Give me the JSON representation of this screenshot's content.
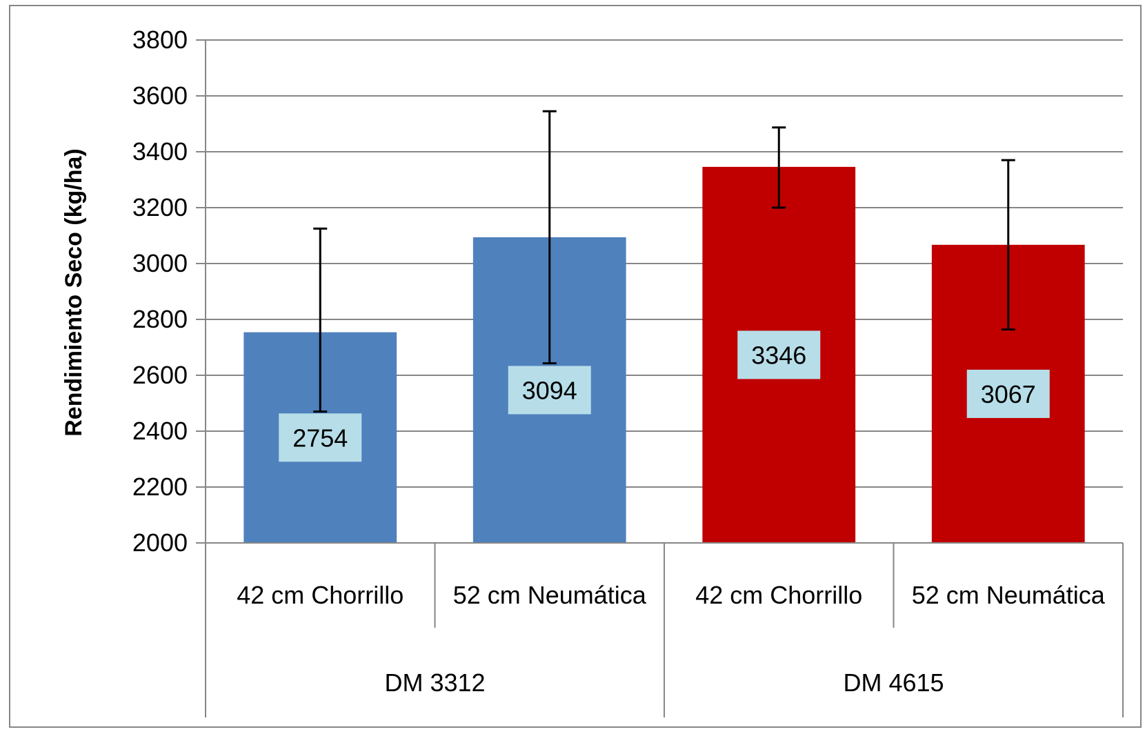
{
  "chart_data": {
    "type": "bar",
    "title": "",
    "xlabel": "",
    "ylabel": "Rendimiento Seco (kg/ha)",
    "ylim": [
      2000,
      3800
    ],
    "yticks": [
      2000,
      2200,
      2400,
      2600,
      2800,
      3000,
      3200,
      3400,
      3600,
      3800
    ],
    "grid": true,
    "legend": "none",
    "groups": [
      {
        "name": "DM 3312",
        "color": "#4f81bd"
      },
      {
        "name": "DM 4615",
        "color": "#c00000"
      }
    ],
    "bars": [
      {
        "group": 0,
        "category": "42 cm Chorrillo",
        "value": 2754,
        "error_high": 3125,
        "error_low": 2470,
        "label": "2754"
      },
      {
        "group": 0,
        "category": "52 cm Neumática",
        "value": 3094,
        "error_high": 3545,
        "error_low": 2643,
        "label": "3094"
      },
      {
        "group": 1,
        "category": "42 cm Chorrillo",
        "value": 3346,
        "error_high": 3487,
        "error_low": 3200,
        "label": "3346"
      },
      {
        "group": 1,
        "category": "52 cm Neumática",
        "value": 3067,
        "error_high": 3370,
        "error_low": 2764,
        "label": "3067"
      }
    ],
    "data_label_bg": "#b7dee8"
  }
}
